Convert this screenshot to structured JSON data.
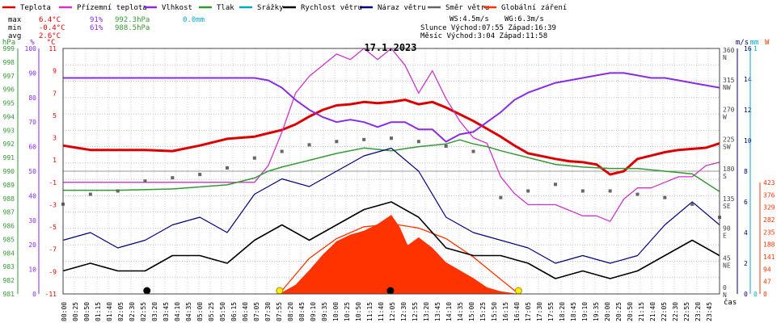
{
  "chart_data": {
    "type": "line",
    "title": "17.1.2023",
    "legend": [
      {
        "name": "Teplota",
        "color": "#dd0000"
      },
      {
        "name": "Přízemní teplota",
        "color": "#cc33cc"
      },
      {
        "name": "Vlhkost",
        "color": "#8a2be2"
      },
      {
        "name": "Tlak",
        "color": "#339933"
      },
      {
        "name": "Srážky",
        "color": "#00aacc"
      },
      {
        "name": "Rychlost větru",
        "color": "#000000"
      },
      {
        "name": "Náraz větru",
        "color": "#000080"
      },
      {
        "name": "Směr větru",
        "color": "#666666"
      },
      {
        "name": "Globální záření",
        "color": "#ff3300"
      }
    ],
    "summary": {
      "max": {
        "label": "max",
        "temp": "6.4°C",
        "hum": "91%",
        "press": "992.3hPa",
        "rain": "0.0mm"
      },
      "min": {
        "label": "min",
        "temp": "-0.4°C",
        "hum": "61%",
        "press": "988.5hPa"
      },
      "avg": {
        "label": "avg",
        "temp": "2.6°C"
      },
      "ws": "WS:4.5m/s",
      "wg": "WG:6.3m/s",
      "sun": "Slunce Východ:07:55   Západ:16:39",
      "moon": "Měsíc  Východ:3:04    Západ:11:58"
    },
    "xlabel": "čas",
    "x_ticks": [
      "00:00",
      "00:25",
      "00:50",
      "01:15",
      "01:40",
      "02:05",
      "02:30",
      "02:55",
      "03:20",
      "03:45",
      "04:10",
      "04:35",
      "05:00",
      "05:25",
      "05:50",
      "06:15",
      "06:40",
      "07:05",
      "07:30",
      "07:55",
      "08:20",
      "08:45",
      "09:10",
      "09:35",
      "10:00",
      "10:25",
      "10:50",
      "11:15",
      "11:40",
      "12:05",
      "12:30",
      "12:55",
      "13:20",
      "13:45",
      "14:10",
      "14:35",
      "15:00",
      "15:25",
      "15:50",
      "16:15",
      "16:40",
      "17:05",
      "17:30",
      "17:55",
      "18:20",
      "18:45",
      "19:10",
      "19:35",
      "20:00",
      "20:25",
      "20:50",
      "21:15",
      "21:40",
      "22:05",
      "22:30",
      "22:55",
      "23:20",
      "23:45"
    ],
    "axes": {
      "pressure_hpa": {
        "unit": "hPa",
        "ticks": [
          "999",
          "998",
          "997",
          "996",
          "995",
          "994",
          "993",
          "992",
          "991",
          "990",
          "989",
          "988",
          "987",
          "986",
          "985",
          "984",
          "983",
          "982",
          "981"
        ]
      },
      "humidity_pct": {
        "unit": "%",
        "ticks": [
          "100",
          "90",
          "80",
          "70",
          "60",
          "50",
          "40",
          "30",
          "20",
          "10",
          "0"
        ]
      },
      "temp_c": {
        "unit": "°C",
        "ticks": [
          "11",
          "9",
          "7",
          "5",
          "3",
          "1",
          "-1",
          "-3",
          "-5",
          "-7",
          "-9",
          "-11"
        ]
      },
      "wind_ms": {
        "unit": "m/s",
        "ticks": [
          "16",
          "14",
          "12",
          "10",
          "8",
          "6",
          "4",
          "2",
          "0"
        ]
      },
      "rain_mm": {
        "unit": "mm",
        "ticks": [
          "1",
          "0"
        ]
      },
      "direction": {
        "ticks": [
          "360 N",
          "315 NW",
          "270 W",
          "225 SW",
          "180 S",
          "135 SE",
          "90 E",
          "45 NE",
          "0 N"
        ]
      },
      "radiation_w": {
        "unit": "W",
        "ticks": [
          "423",
          "376",
          "329",
          "282",
          "235",
          "188",
          "141",
          "94",
          "47",
          "0"
        ]
      }
    },
    "series": [
      {
        "name": "Teplota",
        "unit": "°C",
        "x": [
          0,
          0.5,
          1,
          2,
          3,
          4,
          5,
          5.5,
          6,
          7,
          7.5,
          8,
          8.5,
          9,
          9.5,
          10,
          10.5,
          11,
          11.5,
          12,
          12.5,
          13,
          13.5,
          14,
          14.5,
          15,
          15.5,
          16,
          16.5,
          17,
          18,
          18.5,
          19,
          19.5,
          20,
          20.5,
          21,
          21.5,
          22,
          22.5,
          23,
          23.5,
          24
        ],
        "y": [
          2.3,
          2.1,
          1.9,
          1.9,
          1.9,
          1.8,
          2.3,
          2.6,
          2.9,
          3.1,
          3.4,
          3.7,
          4.2,
          4.9,
          5.5,
          5.9,
          6.0,
          6.2,
          6.1,
          6.2,
          6.4,
          6.0,
          6.2,
          5.7,
          5.1,
          4.5,
          3.8,
          3.1,
          2.3,
          1.6,
          1.1,
          0.9,
          0.8,
          0.6,
          -0.3,
          0.0,
          1.1,
          1.4,
          1.7,
          1.9,
          2.0,
          2.1,
          2.5
        ]
      },
      {
        "name": "Přízemní teplota",
        "unit": "°C",
        "x": [
          0,
          1,
          2,
          3,
          4,
          5,
          6,
          7,
          7.5,
          8,
          8.5,
          9,
          9.5,
          10,
          10.5,
          11,
          11.5,
          12,
          12.5,
          13,
          13.5,
          14,
          14.5,
          15,
          15.5,
          16,
          16.5,
          17,
          18,
          18.5,
          19,
          19.5,
          20,
          20.5,
          21,
          21.5,
          22,
          22.5,
          23,
          23.5,
          24
        ],
        "y": [
          -1.0,
          -1.0,
          -1.0,
          -1.0,
          -1.0,
          -1.0,
          -1.0,
          -1.0,
          0.5,
          3.5,
          7.0,
          8.5,
          9.5,
          10.5,
          10.0,
          11.0,
          10.0,
          11.0,
          9.5,
          7.0,
          9.0,
          6.5,
          4.5,
          3.0,
          2.5,
          -0.5,
          -2.0,
          -3.0,
          -3.0,
          -3.5,
          -4.0,
          -4.0,
          -4.5,
          -2.5,
          -1.5,
          -1.5,
          -1.0,
          -0.5,
          -0.5,
          0.5,
          0.8
        ]
      },
      {
        "name": "Vlhkost",
        "unit": "%",
        "x": [
          0,
          1,
          2,
          3,
          4,
          5,
          6,
          7,
          7.5,
          8,
          8.5,
          9,
          9.5,
          10,
          10.5,
          11,
          11.5,
          12,
          12.5,
          13,
          13.5,
          14,
          14.5,
          15,
          15.5,
          16,
          16.5,
          17,
          18,
          19,
          19.5,
          20,
          20.5,
          21,
          21.5,
          22,
          22.5,
          23,
          23.5,
          24
        ],
        "y": [
          88,
          88,
          88,
          88,
          88,
          88,
          88,
          88,
          87,
          84,
          79,
          75,
          72,
          70,
          71,
          70,
          68,
          70,
          70,
          67,
          67,
          62,
          65,
          66,
          70,
          74,
          79,
          82,
          86,
          88,
          89,
          90,
          90,
          89,
          88,
          88,
          87,
          86,
          85,
          84
        ]
      },
      {
        "name": "Tlak",
        "unit": "hPa",
        "x": [
          0,
          2,
          4,
          6,
          7,
          7.5,
          8,
          9,
          10,
          11,
          12,
          13,
          14,
          14.5,
          15,
          15.5,
          16,
          17,
          18,
          19,
          20,
          21,
          22,
          23,
          24
        ],
        "y": [
          988.6,
          988.6,
          988.7,
          989.0,
          989.5,
          990.0,
          990.3,
          990.8,
          991.3,
          991.7,
          991.5,
          991.8,
          992.0,
          992.3,
          992.0,
          991.8,
          991.5,
          991.0,
          990.5,
          990.3,
          990.2,
          990.2,
          990.0,
          989.8,
          988.5
        ]
      },
      {
        "name": "Rychlost větru",
        "unit": "m/s",
        "x": [
          0,
          1,
          2,
          3,
          4,
          5,
          6,
          7,
          8,
          9,
          10,
          11,
          12,
          13,
          14,
          15,
          16,
          17,
          18,
          19,
          20,
          21,
          22,
          23,
          24
        ],
        "y": [
          1.5,
          2.0,
          1.5,
          1.5,
          2.5,
          2.5,
          2.0,
          3.5,
          4.5,
          3.5,
          4.5,
          5.5,
          6.0,
          5.0,
          3.0,
          2.5,
          2.5,
          2.0,
          1.0,
          1.5,
          1.0,
          1.5,
          2.5,
          3.5,
          2.5
        ]
      },
      {
        "name": "Náraz větru",
        "unit": "m/s",
        "x": [
          0,
          1,
          2,
          3,
          4,
          5,
          6,
          7,
          8,
          9,
          10,
          11,
          12,
          13,
          14,
          15,
          16,
          17,
          18,
          19,
          20,
          21,
          22,
          23,
          24
        ],
        "y": [
          3.5,
          4.0,
          3.0,
          3.5,
          4.5,
          5.0,
          4.0,
          6.5,
          7.5,
          7.0,
          8.0,
          9.0,
          9.5,
          8.0,
          5.0,
          4.0,
          3.5,
          3.0,
          2.0,
          2.5,
          2.0,
          2.5,
          4.5,
          6.0,
          4.5
        ]
      },
      {
        "name": "Směr větru",
        "unit": "°",
        "x": [
          0,
          1,
          2,
          3,
          4,
          5,
          6,
          7,
          8,
          9,
          10,
          11,
          12,
          13,
          14,
          15,
          16,
          17,
          18,
          19,
          20,
          21,
          22,
          23,
          24
        ],
        "y": [
          130,
          145,
          150,
          165,
          170,
          175,
          185,
          200,
          210,
          220,
          225,
          228,
          230,
          225,
          218,
          210,
          140,
          150,
          160,
          150,
          150,
          145,
          140,
          130,
          110
        ]
      },
      {
        "name": "Globální záření",
        "unit": "W",
        "x": [
          7.9,
          8.5,
          9,
          9.5,
          10,
          10.5,
          11,
          11.5,
          12,
          12.3,
          12.6,
          13,
          13.5,
          14,
          14.5,
          15,
          15.5,
          16,
          16.66
        ],
        "y": [
          0,
          35,
          90,
          150,
          200,
          225,
          240,
          265,
          300,
          255,
          185,
          215,
          175,
          120,
          90,
          60,
          25,
          10,
          0
        ]
      }
    ],
    "clear_sky_radiation": {
      "x": [
        7.9,
        9,
        10,
        11,
        12.1,
        13,
        14,
        15,
        16,
        16.66
      ],
      "y": [
        0,
        135,
        210,
        255,
        265,
        250,
        210,
        140,
        55,
        0
      ]
    },
    "sun_markers": [
      "07:55",
      "16:39"
    ],
    "moon_markers": [
      "03:04",
      "11:58"
    ]
  }
}
